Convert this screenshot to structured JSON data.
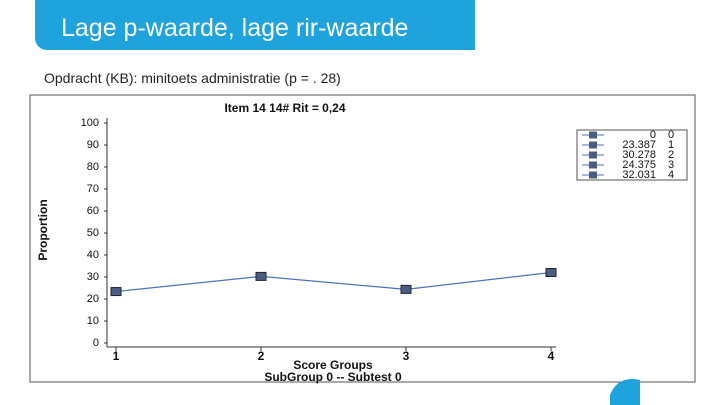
{
  "header": {
    "title": "Lage p-waarde, lage rir-waarde"
  },
  "subtitle": "Opdracht (KB): minitoets administratie (p = . 28)",
  "chart_data": {
    "type": "line",
    "title": "Item 14   14#   Rit = 0,24",
    "y_label": "Proportion",
    "x_label": "Score Groups",
    "x_label_2": "SubGroup 0 -- Subtest 0",
    "x": [
      1,
      2,
      3,
      4
    ],
    "values": [
      23.387,
      30.278,
      24.375,
      32.031
    ],
    "color": "#4a72b8",
    "marker_color": "#4b5d80",
    "xlim": [
      1,
      4
    ],
    "xticks": [
      1,
      2,
      3,
      4
    ],
    "ylim": [
      0,
      100
    ],
    "yticks": [
      0,
      10,
      20,
      30,
      40,
      50,
      60,
      70,
      80,
      90,
      100
    ],
    "legend": [
      [
        "0",
        "0"
      ],
      [
        "23.387",
        "1"
      ],
      [
        "30.278",
        "2"
      ],
      [
        "24.375",
        "3"
      ],
      [
        "32.031",
        "4"
      ]
    ]
  }
}
